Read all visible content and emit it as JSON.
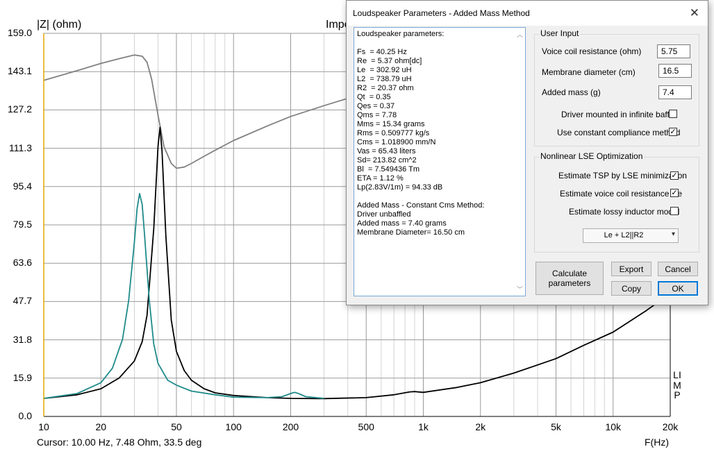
{
  "plot": {
    "y_axis_label": "|Z| (ohm)",
    "title_partial": "Impe",
    "x_axis_label": "F(Hz)",
    "right_label": "LIMP",
    "cursor_readout": "Cursor: 10.00 Hz, 7.48 Ohm, 33.5 deg",
    "y_ticks": [
      "159.0",
      "143.1",
      "127.2",
      "111.3",
      "95.4",
      "79.5",
      "63.6",
      "47.7",
      "31.8",
      "15.9",
      "0.0"
    ],
    "x_ticks": [
      "10",
      "20",
      "50",
      "100",
      "200",
      "500",
      "1k",
      "2k",
      "5k",
      "10k",
      "20k"
    ]
  },
  "chart_data": {
    "type": "line",
    "xscale": "log",
    "xlim": [
      10,
      20000
    ],
    "ylim": [
      0,
      159.0
    ],
    "ylabel": "|Z| (ohm)",
    "xlabel": "F(Hz)",
    "grid": true,
    "series": [
      {
        "color": "#808080",
        "x": [
          10,
          15,
          20,
          25,
          30,
          33,
          35,
          37,
          40,
          43,
          47,
          50,
          55,
          60,
          70,
          80,
          100,
          150,
          200,
          300,
          400,
          500,
          520
        ],
        "y": [
          139.5,
          143.5,
          146.5,
          148.5,
          150,
          149.5,
          147,
          140,
          125,
          112,
          105,
          103,
          103.5,
          105,
          108,
          110.5,
          114.5,
          120.5,
          124.5,
          129,
          132,
          134,
          134.5
        ]
      },
      {
        "color": "#000000",
        "x": [
          10,
          15,
          20,
          25,
          30,
          33,
          35,
          38,
          40,
          41,
          42,
          44,
          47,
          50,
          55,
          60,
          70,
          80,
          100,
          150,
          200,
          300,
          500,
          700,
          850,
          900,
          1000,
          1500,
          2000,
          3000,
          5000,
          7000,
          10000,
          15000,
          20000
        ],
        "y": [
          7.5,
          9,
          11.5,
          16,
          23,
          31,
          42,
          78,
          112,
          120,
          110,
          75,
          40,
          27,
          19,
          15,
          11.5,
          9.8,
          8.7,
          7.8,
          7.5,
          7.4,
          7.8,
          9,
          10.2,
          10.3,
          10,
          12,
          14,
          18,
          24,
          29.5,
          35,
          44,
          51
        ]
      },
      {
        "color": "#1f8a8a",
        "x": [
          10,
          15,
          20,
          23,
          26,
          28,
          30,
          31,
          32,
          33,
          34,
          36,
          38,
          40,
          45,
          50,
          60,
          80,
          100,
          150,
          180,
          200,
          210,
          220,
          240,
          300
        ],
        "y": [
          7.5,
          9.5,
          14,
          20,
          32,
          48,
          72,
          86,
          92.5,
          88,
          75,
          48,
          30,
          22,
          15,
          13,
          10.5,
          9,
          8,
          7.8,
          8.2,
          9.5,
          10,
          9.5,
          8.2,
          7.5
        ]
      }
    ]
  },
  "dialog": {
    "title": "Loudspeaker Parameters - Added Mass Method",
    "close_glyph": "✕",
    "output_lines": [
      "Loudspeaker parameters:",
      "",
      "Fs  = 40.25 Hz",
      "Re  = 5.37 ohm[dc]",
      "Le  = 302.92 uH",
      "L2  = 738.79 uH",
      "R2  = 20.37 ohm",
      "Qt  = 0.35",
      "Qes = 0.37",
      "Qms = 7.78",
      "Mms = 15.34 grams",
      "Rms = 0.509777 kg/s",
      "Cms = 1.018900 mm/N",
      "Vas = 65.43 liters",
      "Sd= 213.82 cm^2",
      "Bl  = 7.549436 Tm",
      "ETA = 1.12 %",
      "Lp(2.83V/1m) = 94.33 dB",
      "",
      "Added Mass - Constant Cms Method:",
      "Driver unbaffled",
      "Added mass = 7.40 grams",
      "Membrane Diameter= 16.50 cm"
    ],
    "user_input": {
      "legend": "User Input",
      "voice_coil_label": "Voice coil resistance (ohm)",
      "voice_coil_value": "5.75",
      "membrane_label": "Membrane diameter (cm)",
      "membrane_value": "16.5",
      "added_mass_label": "Added mass (g)",
      "added_mass_value": "7.4",
      "infinite_baffle_label": "Driver mounted in infinite baffle",
      "infinite_baffle_checked": false,
      "constant_compliance_label": "Use constant compliance method",
      "constant_compliance_checked": true
    },
    "lse": {
      "legend": "Nonlinear LSE Optimization",
      "tsp_label": "Estimate TSP by LSE minimization",
      "tsp_checked": true,
      "re_label": "Estimate voice coil resistance Re",
      "re_checked": true,
      "lossy_label": "Estimate lossy inductor model",
      "lossy_checked": false,
      "model_selected": "Le + L2||R2"
    },
    "buttons": {
      "calculate": "Calculate parameters",
      "export": "Export",
      "cancel": "Cancel",
      "copy": "Copy",
      "ok": "OK"
    },
    "check_glyph": "✓"
  }
}
